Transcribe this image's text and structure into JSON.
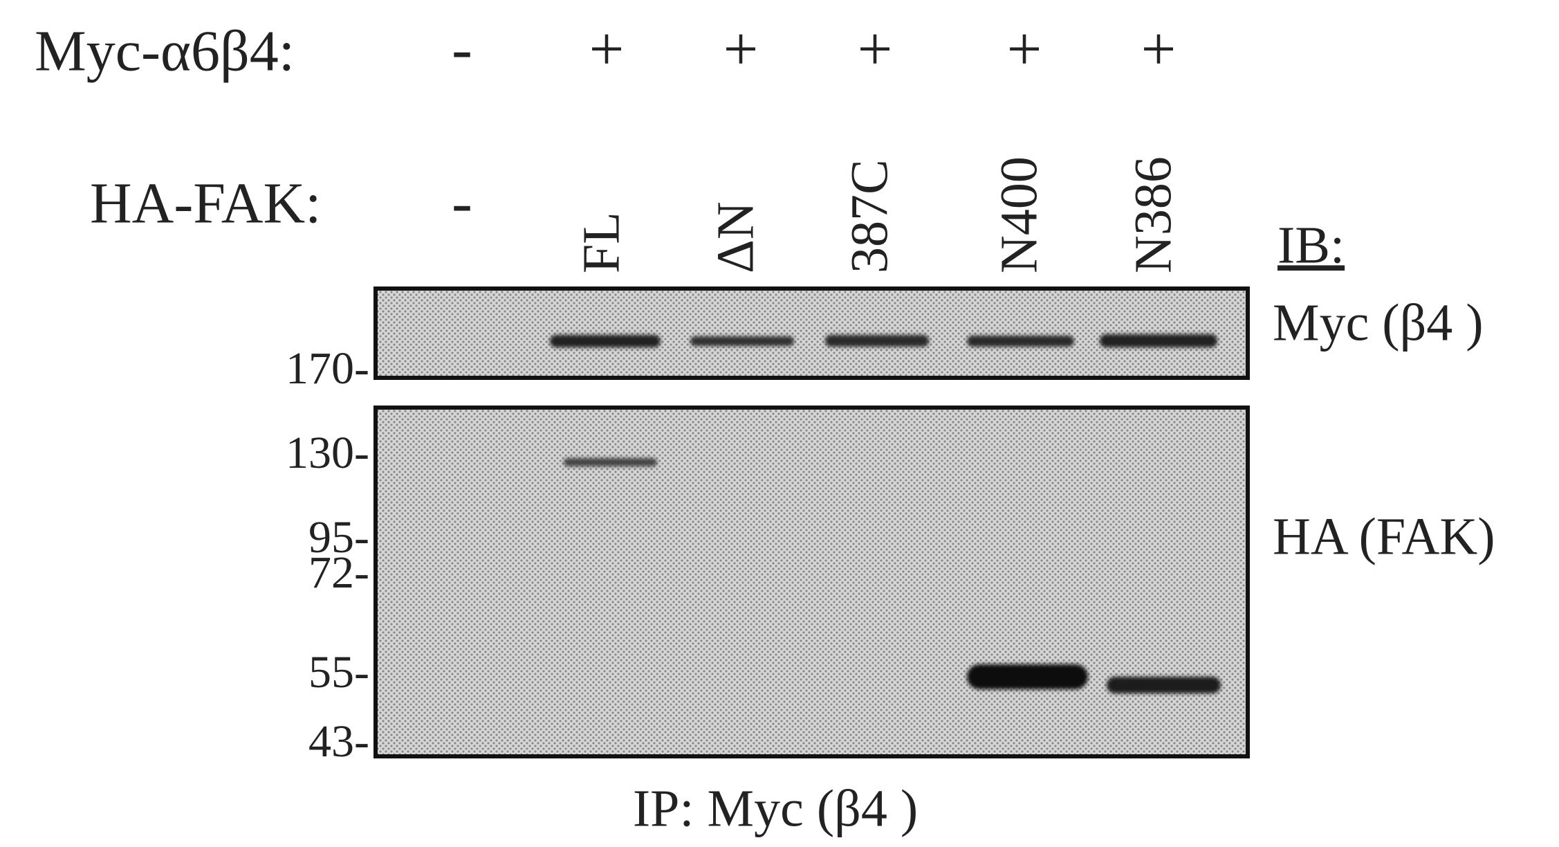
{
  "treatments": {
    "myc": {
      "label": "Myc-α6β4:",
      "values": [
        "-",
        "+",
        "+",
        "+",
        "+",
        "+"
      ]
    },
    "ha": {
      "label": "HA-FAK:",
      "values": [
        "-",
        "FL",
        "ΔN",
        "387C",
        "N400",
        "N386"
      ]
    }
  },
  "ib_label": "IB:",
  "blots": [
    {
      "label": "Myc (β4 )"
    },
    {
      "label": "HA (FAK)"
    }
  ],
  "markers": [
    "170-",
    "130-",
    "95-",
    "72-",
    "55-",
    "43-"
  ],
  "ip_label": "IP: Myc (β4 )"
}
